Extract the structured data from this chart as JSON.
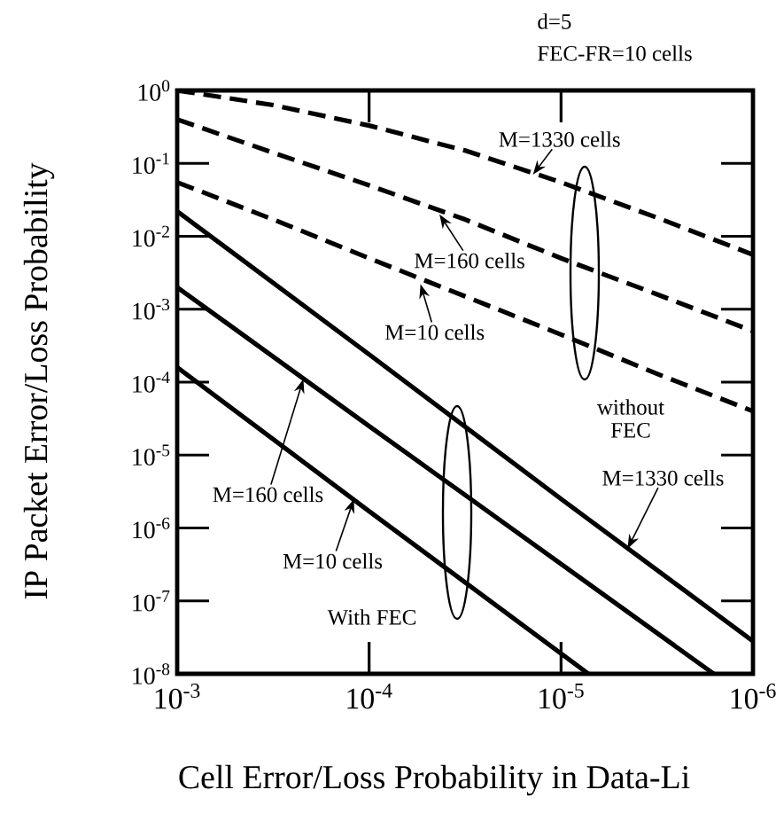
{
  "chart_data": {
    "type": "line",
    "xlabel": "Cell Error/Loss Probability in Data-Li",
    "ylabel": "IP Packet Error/Loss Probability",
    "log": "xy",
    "grid": false,
    "marker": "none",
    "xlim": [
      0.001,
      1e-06
    ],
    "xticks": [
      {
        "value": 0.001,
        "label": "10$^{-3}$"
      },
      {
        "value": 0.0001,
        "label": "10$^{-4}$"
      },
      {
        "value": 1e-05,
        "label": "10$^{-5}$"
      },
      {
        "value": 1e-06,
        "label": "10$^{-6}$"
      }
    ],
    "ylim": [
      1e-08,
      1
    ],
    "yticks": [
      {
        "value": 1e-08,
        "label": "10$^{-8}$"
      },
      {
        "value": 1e-07,
        "label": "10$^{-7}$"
      },
      {
        "value": 1e-06,
        "label": "10$^{-6}$"
      },
      {
        "value": 1e-05,
        "label": "10$^{-5}$"
      },
      {
        "value": 0.0001,
        "label": "10$^{-4}$"
      },
      {
        "value": 0.001,
        "label": "10$^{-3}$"
      },
      {
        "value": 0.01,
        "label": "10$^{-2}$"
      },
      {
        "value": 0.1,
        "label": "10$^{-1}$"
      },
      {
        "value": 1,
        "label": "10$^{0}$"
      }
    ],
    "series": [
      {
        "color": "#000000",
        "line_style": "dashed",
        "x": [
          0.001,
          0.000316,
          0.0001,
          3.16e-05,
          1e-05,
          3.16e-06,
          1e-06
        ],
        "values": [
          1.0,
          0.63,
          0.33,
          0.15,
          0.055,
          0.018,
          0.0056
        ]
      },
      {
        "color": "#000000",
        "line_style": "dashed",
        "x": [
          0.001,
          0.000316,
          0.0001,
          3.16e-05,
          1e-05,
          3.16e-06,
          1e-06
        ],
        "values": [
          0.4,
          0.14,
          0.05,
          0.017,
          0.005,
          0.0016,
          0.0005
        ]
      },
      {
        "color": "#000000",
        "line_style": "dashed",
        "x": [
          0.001,
          0.000316,
          0.0001,
          3.16e-05,
          1e-05,
          3.16e-06,
          1e-06
        ],
        "values": [
          0.055,
          0.017,
          0.005,
          0.0015,
          0.00045,
          0.00013,
          4e-05
        ]
      },
      {
        "color": "#000000",
        "line_style": "solid",
        "x": [
          0.001,
          0.0001,
          1e-05,
          1e-06
        ],
        "values": [
          0.022,
          0.00024,
          2.5e-06,
          2.8e-08
        ]
      },
      {
        "color": "#000000",
        "line_style": "solid",
        "x": [
          0.001,
          0.0001,
          1e-05,
          1.6e-06
        ],
        "values": [
          0.002,
          2.5e-05,
          3.2e-07,
          1e-08
        ]
      },
      {
        "color": "#000000",
        "line_style": "solid",
        "x": [
          0.001,
          0.0001,
          7.2e-06
        ],
        "values": [
          0.00016,
          1.7e-06,
          1e-08
        ]
      }
    ],
    "annotations": [
      {
        "text": "M=1330 cells",
        "x": 1.4e-05,
        "y": 0.07
      },
      {
        "text": "M=160 cells",
        "x": 4.3e-05,
        "y": 0.02
      },
      {
        "text": "M=10 cells",
        "x": 5.4e-05,
        "y": 0.0022
      },
      {
        "text": "M=160 cells",
        "x": 0.00022,
        "y": 0.00011
      },
      {
        "text": "M=10 cells",
        "x": 0.00012,
        "y": 2.5e-06
      },
      {
        "text": "M=1330 cells",
        "x": 4.5e-06,
        "y": 5.2e-07
      },
      "without FEC",
      "With FEC",
      "d=5",
      "FEC-FR=10 cells"
    ]
  }
}
